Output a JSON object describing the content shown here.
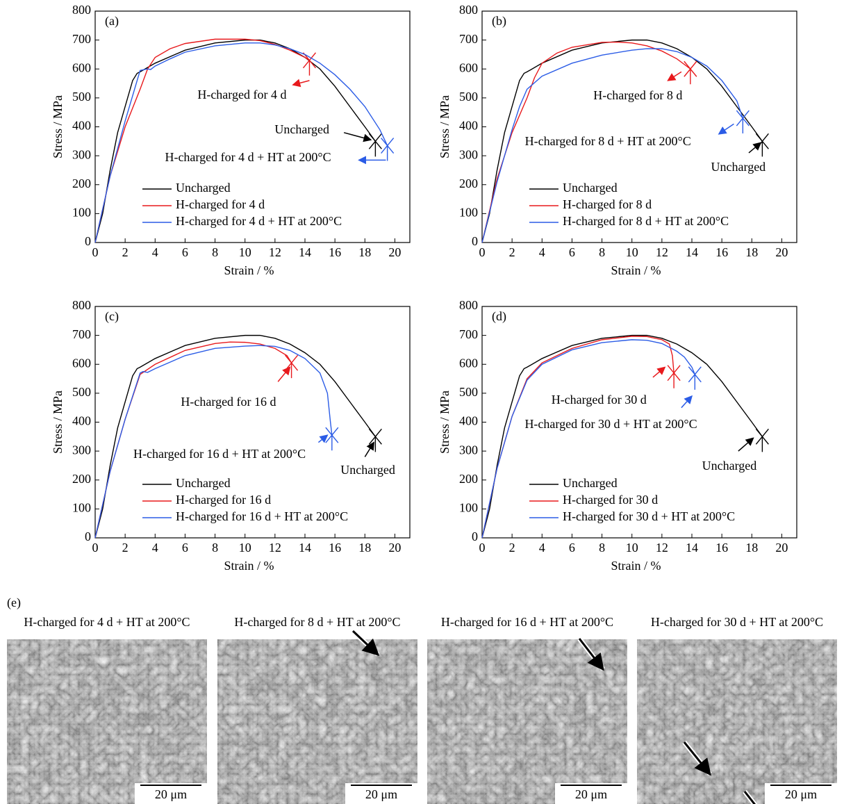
{
  "chart_data": [
    {
      "type": "line",
      "panel_label": "(a)",
      "xlabel": "Strain / %",
      "ylabel": "Stress / MPa",
      "xlim": [
        0,
        21
      ],
      "ylim": [
        0,
        800
      ],
      "xticks": [
        0,
        2,
        4,
        6,
        8,
        10,
        12,
        14,
        16,
        18,
        20
      ],
      "yticks": [
        0,
        100,
        200,
        300,
        400,
        500,
        600,
        700,
        800
      ],
      "series": [
        {
          "name": "Uncharged",
          "color": "#000000",
          "x": [
            0,
            0.5,
            1,
            1.5,
            2,
            2.5,
            2.8,
            3,
            4,
            6,
            8,
            10,
            11,
            12,
            13,
            14,
            15,
            16,
            17,
            18,
            18.7
          ],
          "values": [
            0,
            100,
            250,
            380,
            470,
            560,
            585,
            590,
            620,
            665,
            690,
            700,
            700,
            690,
            670,
            640,
            600,
            540,
            470,
            400,
            350
          ]
        },
        {
          "name": "H-charged for 4 d",
          "color": "#e8191c",
          "x": [
            0,
            1,
            2,
            3,
            3.5,
            4,
            5,
            6,
            8,
            10,
            11,
            12,
            13,
            14,
            14.3
          ],
          "values": [
            0,
            230,
            400,
            530,
            600,
            640,
            670,
            688,
            703,
            703,
            698,
            685,
            665,
            640,
            630
          ]
        },
        {
          "name": "H-charged for 4 d + HT at 200°C",
          "color": "#2b5ce6",
          "x": [
            0,
            1,
            2,
            3,
            3.5,
            3.7,
            4,
            5,
            6,
            8,
            10,
            11,
            12,
            13,
            14,
            15,
            16,
            17,
            18,
            19,
            19.5
          ],
          "values": [
            0,
            230,
            420,
            595,
            600,
            598,
            610,
            635,
            658,
            680,
            690,
            690,
            683,
            670,
            650,
            620,
            580,
            530,
            470,
            390,
            335
          ]
        }
      ],
      "annotations": [
        "H-charged for 4 d",
        "Uncharged",
        "H-charged for 4 d + HT at 200°C"
      ]
    },
    {
      "type": "line",
      "panel_label": "(b)",
      "xlabel": "Strain / %",
      "ylabel": "Stress / MPa",
      "xlim": [
        0,
        21
      ],
      "ylim": [
        0,
        800
      ],
      "xticks": [
        0,
        2,
        4,
        6,
        8,
        10,
        12,
        14,
        16,
        18,
        20
      ],
      "yticks": [
        0,
        100,
        200,
        300,
        400,
        500,
        600,
        700,
        800
      ],
      "series": [
        {
          "name": "Uncharged",
          "color": "#000000",
          "x": [
            0,
            0.5,
            1,
            1.5,
            2,
            2.5,
            2.8,
            3,
            4,
            6,
            8,
            10,
            11,
            12,
            13,
            14,
            15,
            16,
            17,
            18,
            18.7
          ],
          "values": [
            0,
            100,
            250,
            380,
            470,
            560,
            585,
            590,
            620,
            665,
            690,
            700,
            700,
            690,
            670,
            640,
            600,
            540,
            470,
            400,
            350
          ]
        },
        {
          "name": "H-charged for 8 d",
          "color": "#e8191c",
          "x": [
            0,
            1,
            2,
            3,
            3.5,
            4,
            5,
            6,
            8,
            9,
            10,
            11,
            12,
            13,
            13.9
          ],
          "values": [
            0,
            220,
            380,
            500,
            570,
            620,
            655,
            675,
            692,
            693,
            690,
            680,
            662,
            635,
            600
          ]
        },
        {
          "name": "H-charged for 8 d + HT at 200°C",
          "color": "#2b5ce6",
          "x": [
            0,
            1,
            2,
            2.5,
            3,
            4,
            6,
            8,
            10,
            11,
            12,
            13,
            14,
            15,
            16,
            17,
            17.4
          ],
          "values": [
            0,
            210,
            390,
            470,
            530,
            575,
            620,
            648,
            665,
            670,
            670,
            660,
            640,
            610,
            560,
            490,
            430
          ]
        }
      ],
      "annotations": [
        "H-charged for 8 d",
        "H-charged for 8 d + HT at 200°C",
        "Uncharged"
      ]
    },
    {
      "type": "line",
      "panel_label": "(c)",
      "xlabel": "Strain / %",
      "ylabel": "Stress / MPa",
      "xlim": [
        0,
        21
      ],
      "ylim": [
        0,
        800
      ],
      "xticks": [
        0,
        2,
        4,
        6,
        8,
        10,
        12,
        14,
        16,
        18,
        20
      ],
      "yticks": [
        0,
        100,
        200,
        300,
        400,
        500,
        600,
        700,
        800
      ],
      "series": [
        {
          "name": "Uncharged",
          "color": "#000000",
          "x": [
            0,
            0.5,
            1,
            1.5,
            2,
            2.5,
            2.8,
            3,
            4,
            6,
            8,
            10,
            11,
            12,
            13,
            14,
            15,
            16,
            17,
            18,
            18.7
          ],
          "values": [
            0,
            100,
            250,
            380,
            470,
            560,
            585,
            590,
            620,
            665,
            690,
            700,
            700,
            690,
            670,
            640,
            600,
            540,
            470,
            400,
            350
          ]
        },
        {
          "name": "H-charged for 16 d",
          "color": "#e8191c",
          "x": [
            0,
            1,
            2,
            3,
            4,
            6,
            8,
            9,
            10,
            11,
            12,
            12.8,
            13.1
          ],
          "values": [
            0,
            230,
            410,
            565,
            600,
            648,
            672,
            677,
            676,
            670,
            655,
            630,
            605
          ]
        },
        {
          "name": "H-charged for 16 d + HT at 200°C",
          "color": "#2b5ce6",
          "x": [
            0,
            1,
            2,
            3,
            3.2,
            3.5,
            4,
            6,
            8,
            10,
            11,
            12,
            13,
            14,
            15,
            15.5,
            15.7,
            15.8
          ],
          "values": [
            0,
            230,
            410,
            570,
            575,
            572,
            585,
            630,
            655,
            663,
            665,
            662,
            648,
            620,
            570,
            500,
            400,
            355
          ]
        }
      ],
      "annotations": [
        "H-charged for 16 d",
        "H-charged for 16 d + HT at 200°C",
        "Uncharged"
      ]
    },
    {
      "type": "line",
      "panel_label": "(d)",
      "xlabel": "Strain / %",
      "ylabel": "Stress / MPa",
      "xlim": [
        0,
        21
      ],
      "ylim": [
        0,
        800
      ],
      "xticks": [
        0,
        2,
        4,
        6,
        8,
        10,
        12,
        14,
        16,
        18,
        20
      ],
      "yticks": [
        0,
        100,
        200,
        300,
        400,
        500,
        600,
        700,
        800
      ],
      "series": [
        {
          "name": "Uncharged",
          "color": "#000000",
          "x": [
            0,
            0.5,
            1,
            1.5,
            2,
            2.5,
            2.8,
            3,
            4,
            6,
            8,
            10,
            11,
            12,
            13,
            14,
            15,
            16,
            17,
            18,
            18.7
          ],
          "values": [
            0,
            100,
            250,
            380,
            470,
            560,
            585,
            590,
            620,
            665,
            690,
            700,
            700,
            690,
            670,
            640,
            600,
            540,
            470,
            400,
            350
          ]
        },
        {
          "name": "H-charged for 30 d",
          "color": "#e8191c",
          "x": [
            0,
            1,
            2,
            3,
            4,
            6,
            8,
            10,
            11,
            12,
            12.5,
            12.7,
            12.8
          ],
          "values": [
            0,
            240,
            420,
            550,
            605,
            655,
            685,
            697,
            696,
            685,
            670,
            630,
            570
          ]
        },
        {
          "name": "H-charged for 30 d + HT at 200°C",
          "color": "#2b5ce6",
          "x": [
            0,
            1,
            2,
            3,
            4,
            6,
            8,
            10,
            11,
            12,
            13,
            13.5,
            14,
            14.2
          ],
          "values": [
            0,
            240,
            420,
            545,
            600,
            650,
            675,
            685,
            683,
            672,
            645,
            625,
            590,
            565
          ]
        }
      ],
      "annotations": [
        "H-charged for 30 d",
        "H-charged for 30 d + HT at 200°C",
        "Uncharged"
      ]
    }
  ],
  "figure_e": {
    "label": "(e)",
    "panels": [
      {
        "caption": "H-charged for 4 d + HT at 200°C",
        "scale_bar": "20 μm"
      },
      {
        "caption": "H-charged for 8 d + HT at 200°C",
        "scale_bar": "20 μm"
      },
      {
        "caption": "H-charged for 16 d + HT at 200°C",
        "scale_bar": "20 μm"
      },
      {
        "caption": "H-charged for 30 d + HT at 200°C",
        "scale_bar": "20 μm"
      }
    ]
  }
}
